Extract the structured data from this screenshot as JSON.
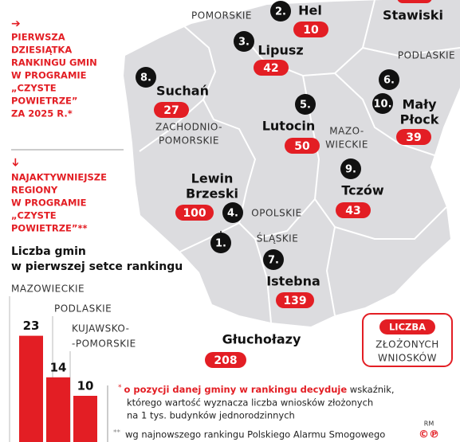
{
  "intro": {
    "arrow_right": "➔",
    "lines": [
      "PIERWSZA",
      "DZIESIĄTKA",
      "RANKINGU GMIN",
      "W PROGRAMIE",
      "„CZYSTE",
      "POWIETRZE”",
      "ZA 2025 R.*"
    ]
  },
  "regions_note": {
    "arrow_down": "➔",
    "lines": [
      "NAJAKTYWNIEJSZE",
      "REGIONY",
      "W PROGRAMIE",
      "„CZYSTE",
      "POWIETRZE”**"
    ]
  },
  "map_regions": [
    {
      "lines": [
        "POMORSKIE"
      ]
    },
    {
      "lines": [
        "PODLASKIE"
      ]
    },
    {
      "lines": [
        "ZACHODNIO-",
        "POMORSKIE"
      ]
    },
    {
      "lines": [
        "MAZO-",
        "WIECKIE"
      ]
    },
    {
      "lines": [
        "OPOLSKIE"
      ]
    },
    {
      "lines": [
        "ŚLĄSKIE"
      ]
    }
  ],
  "markers": [
    {
      "rank": "1.",
      "name": [
        "Głuchołazy"
      ],
      "value": 208
    },
    {
      "rank": "2.",
      "name": [
        "Hel"
      ],
      "value": 10
    },
    {
      "rank": "3.",
      "name": [
        "Lipusz"
      ],
      "value": 42
    },
    {
      "rank": "4.",
      "name": [
        "Lewin",
        "Brzeski"
      ],
      "value": 100
    },
    {
      "rank": "5.",
      "name": [
        "Lutocin"
      ],
      "value": 50
    },
    {
      "rank": "6.",
      "name": [
        "Stawiski"
      ]
    },
    {
      "rank": "7.",
      "name": [
        "Istebna"
      ],
      "value": 139
    },
    {
      "rank": "8.",
      "name": [
        "Suchań"
      ],
      "value": 27
    },
    {
      "rank": "9.",
      "name": [
        "Tczów"
      ],
      "value": 43
    },
    {
      "rank": "10.",
      "name": [
        "Mały",
        "Płock"
      ],
      "value": 39
    }
  ],
  "legend": {
    "tag": "LICZBA",
    "lines": [
      "ZŁOŻONYCH",
      "WNIOSKÓW"
    ]
  },
  "chart_data": {
    "type": "bar",
    "title": [
      "Liczba gmin",
      "w pierwszej setce rankingu"
    ],
    "categories": [
      [
        "MAZOWIECKIE"
      ],
      [
        "PODLASKIE"
      ],
      [
        "KUJAWSKO-",
        "-POMORSKIE"
      ]
    ],
    "values": [
      23,
      14,
      10
    ],
    "color": "#e31e24",
    "ylim": [
      0,
      25
    ]
  },
  "footnotes": {
    "star1": "*",
    "note1_bold": "o pozycji danej gminy w rankingu decyduje",
    "note1_rest": " wskaźnik,",
    "note1_lines": [
      "którego wartość wyznacza liczba wniosków złożonych",
      "na 1 tys. budynków jednorodzinnych"
    ],
    "star2": "**",
    "note2": "wg najnowszego rankingu Polskiego Alarmu Smogowego",
    "rm": "RM",
    "copyright": "©℗"
  }
}
